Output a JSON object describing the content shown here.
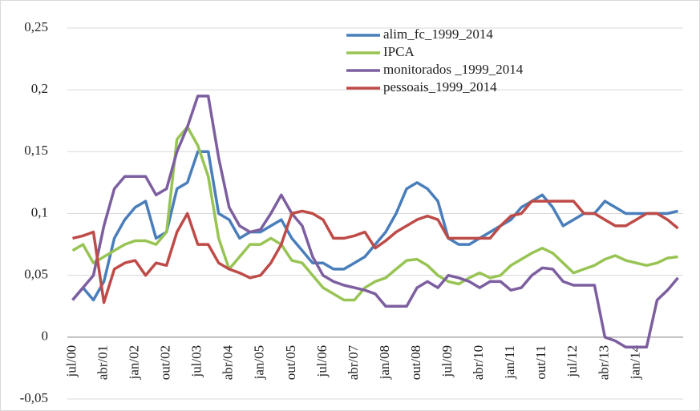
{
  "chart_data": {
    "type": "line",
    "categories": [
      "jul/00",
      null,
      null,
      "abr/01",
      null,
      null,
      "jan/02",
      null,
      null,
      "out/02",
      null,
      null,
      "jul/03",
      null,
      null,
      "abr/04",
      null,
      null,
      "jan/05",
      null,
      null,
      "out/05",
      null,
      null,
      "jul/06",
      null,
      null,
      "abr/07",
      null,
      null,
      "jan/08",
      null,
      null,
      "out/08",
      null,
      null,
      "jul/09",
      null,
      null,
      "abr/10",
      null,
      null,
      "jan/11",
      null,
      null,
      "out/11",
      null,
      null,
      "jul/12",
      null,
      null,
      "abr/13",
      null,
      null,
      "jan/14",
      null,
      null,
      null,
      null
    ],
    "series": [
      {
        "name": "alim_fc_1999_2014",
        "color": "#4a7ebb",
        "values": [
          0.03,
          0.04,
          0.03,
          0.045,
          0.08,
          0.095,
          0.105,
          0.11,
          0.08,
          0.085,
          0.12,
          0.125,
          0.15,
          0.15,
          0.1,
          0.095,
          0.08,
          0.085,
          0.085,
          0.09,
          0.095,
          0.08,
          0.07,
          0.06,
          0.06,
          0.055,
          0.055,
          0.06,
          0.065,
          0.075,
          0.085,
          0.1,
          0.12,
          0.125,
          0.12,
          0.11,
          0.08,
          0.075,
          0.075,
          0.08,
          0.085,
          0.09,
          0.095,
          0.105,
          0.11,
          0.115,
          0.105,
          0.09,
          0.095,
          0.1,
          0.1,
          0.11,
          0.105,
          0.1,
          0.1,
          0.1,
          0.1,
          0.1,
          0.102
        ]
      },
      {
        "name": "IPCA",
        "color": "#98c454",
        "values": [
          0.07,
          0.075,
          0.06,
          0.065,
          0.07,
          0.075,
          0.078,
          0.078,
          0.075,
          0.085,
          0.16,
          0.17,
          0.155,
          0.13,
          0.08,
          0.055,
          0.065,
          0.075,
          0.075,
          0.08,
          0.075,
          0.062,
          0.06,
          0.05,
          0.04,
          0.035,
          0.03,
          0.03,
          0.04,
          0.045,
          0.048,
          0.055,
          0.062,
          0.063,
          0.058,
          0.05,
          0.045,
          0.043,
          0.048,
          0.052,
          0.048,
          0.05,
          0.058,
          0.063,
          0.068,
          0.072,
          0.068,
          0.06,
          0.052,
          0.055,
          0.058,
          0.063,
          0.066,
          0.062,
          0.06,
          0.058,
          0.06,
          0.064,
          0.065
        ]
      },
      {
        "name": "monitorados _1999_2014",
        "color": "#7d5fa0",
        "values": [
          0.03,
          0.04,
          0.05,
          0.09,
          0.12,
          0.13,
          0.13,
          0.13,
          0.115,
          0.12,
          0.15,
          0.17,
          0.195,
          0.195,
          0.145,
          0.105,
          0.09,
          0.085,
          0.087,
          0.1,
          0.115,
          0.1,
          0.09,
          0.065,
          0.05,
          0.045,
          0.042,
          0.04,
          0.038,
          0.035,
          0.025,
          0.025,
          0.025,
          0.04,
          0.045,
          0.04,
          0.05,
          0.048,
          0.045,
          0.04,
          0.045,
          0.045,
          0.038,
          0.04,
          0.05,
          0.056,
          0.055,
          0.045,
          0.042,
          0.042,
          0.042,
          0.0,
          -0.003,
          -0.008,
          -0.008,
          -0.008,
          0.03,
          0.038,
          0.048
        ]
      },
      {
        "name": "pessoais_1999_2014",
        "color": "#be4b48",
        "values": [
          0.08,
          0.082,
          0.085,
          0.028,
          0.055,
          0.06,
          0.062,
          0.05,
          0.06,
          0.058,
          0.085,
          0.1,
          0.075,
          0.075,
          0.06,
          0.055,
          0.052,
          0.048,
          0.05,
          0.06,
          0.075,
          0.1,
          0.102,
          0.1,
          0.095,
          0.08,
          0.08,
          0.082,
          0.085,
          0.072,
          0.078,
          0.085,
          0.09,
          0.095,
          0.098,
          0.095,
          0.08,
          0.08,
          0.08,
          0.08,
          0.08,
          0.09,
          0.098,
          0.1,
          0.11,
          0.11,
          0.11,
          0.11,
          0.11,
          0.1,
          0.1,
          0.095,
          0.09,
          0.09,
          0.095,
          0.1,
          0.1,
          0.095,
          0.088
        ]
      }
    ],
    "ylim": [
      -0.05,
      0.25
    ],
    "yticks": [
      {
        "value": -0.05,
        "label": "-0,05"
      },
      0,
      {
        "value": 0.05,
        "label": "0,05"
      },
      {
        "value": 0.1,
        "label": "0,1"
      },
      {
        "value": 0.15,
        "label": "0,15"
      },
      {
        "value": 0.2,
        "label": "0,2"
      },
      {
        "value": 0.25,
        "label": "0,25"
      }
    ],
    "grid": true
  }
}
